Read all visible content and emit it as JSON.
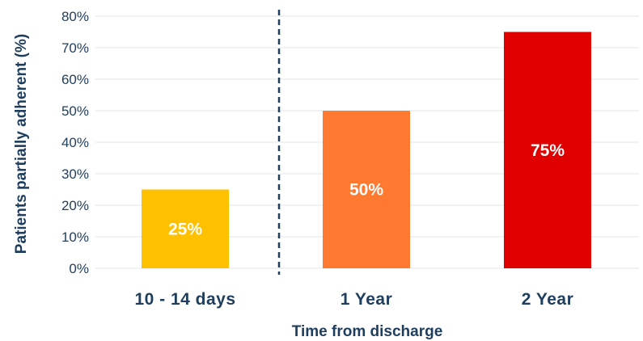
{
  "chart_data": {
    "type": "bar",
    "title": "",
    "xlabel": "Time from discharge",
    "ylabel": "Patients partially adherent (%)",
    "categories": [
      "10 - 14 days",
      "1 Year",
      "2 Year"
    ],
    "values": [
      25,
      50,
      75
    ],
    "value_labels": [
      "25%",
      "50%",
      "75%"
    ],
    "bar_colors": [
      "#ffc000",
      "#ff7a30",
      "#e00000"
    ],
    "ylim": [
      0,
      80
    ],
    "yticks": [
      0,
      10,
      20,
      30,
      40,
      50,
      60,
      70,
      80
    ],
    "ytick_labels": [
      "0%",
      "10%",
      "20%",
      "30%",
      "40%",
      "50%",
      "60%",
      "70%",
      "80%"
    ],
    "grid": true,
    "grid_color": "#e3e6ea",
    "text_color": "#1f3d5c",
    "divider": {
      "between": [
        "10 - 14 days",
        "1 Year"
      ],
      "style": "dashed",
      "color": "#1f3d5c"
    }
  }
}
